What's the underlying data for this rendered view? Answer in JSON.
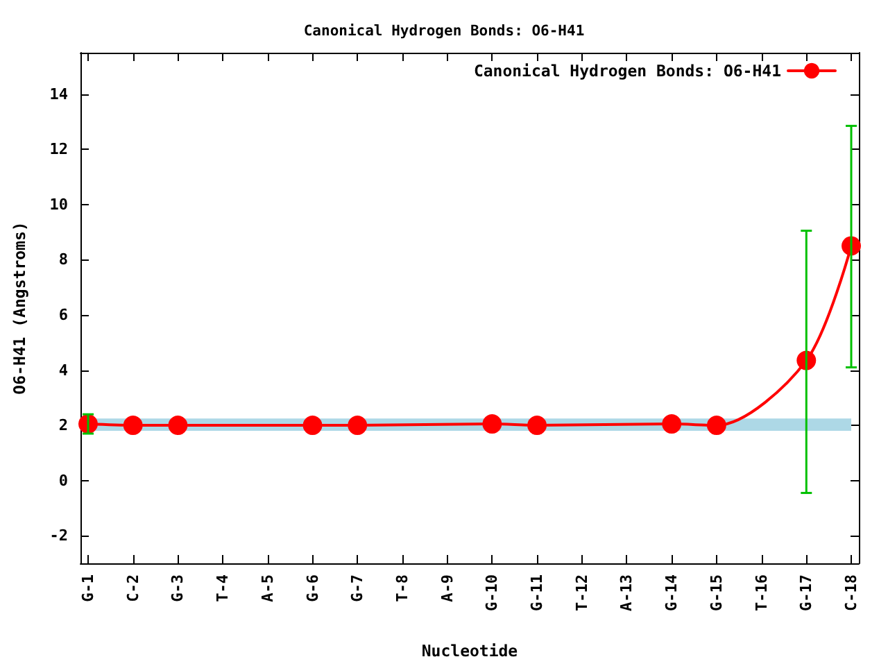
{
  "chart_data": {
    "type": "line",
    "title": "Canonical Hydrogen Bonds: O6-H41",
    "xlabel": "Nucleotide",
    "ylabel": "O6-H41 (Angstroms)",
    "categories": [
      "G-1",
      "C-2",
      "G-3",
      "T-4",
      "A-5",
      "G-6",
      "G-7",
      "T-8",
      "A-9",
      "G-10",
      "G-11",
      "T-12",
      "A-13",
      "G-14",
      "G-15",
      "T-16",
      "G-17",
      "C-18"
    ],
    "series": [
      {
        "name": "Canonical Hydrogen Bonds: O6-H41",
        "color": "#ff0000",
        "values": [
          2.05,
          2.0,
          2.0,
          null,
          null,
          2.0,
          2.0,
          null,
          null,
          2.05,
          2.0,
          null,
          null,
          2.05,
          2.0,
          null,
          4.35,
          8.5
        ],
        "errors": [
          [
            1.7,
            2.4
          ],
          null,
          null,
          null,
          null,
          null,
          null,
          null,
          null,
          null,
          null,
          null,
          null,
          null,
          null,
          null,
          [
            -0.45,
            9.05
          ],
          [
            4.1,
            12.85
          ]
        ]
      }
    ],
    "ylim": [
      -3,
      15.5
    ],
    "yticks": [
      -2,
      0,
      2,
      4,
      6,
      8,
      10,
      12,
      14
    ],
    "bands": [
      {
        "axis": "y",
        "from": 1.8,
        "to": 2.25,
        "color": "#add8e6"
      }
    ],
    "grid": false,
    "legend": "top right",
    "marker": "circle"
  }
}
